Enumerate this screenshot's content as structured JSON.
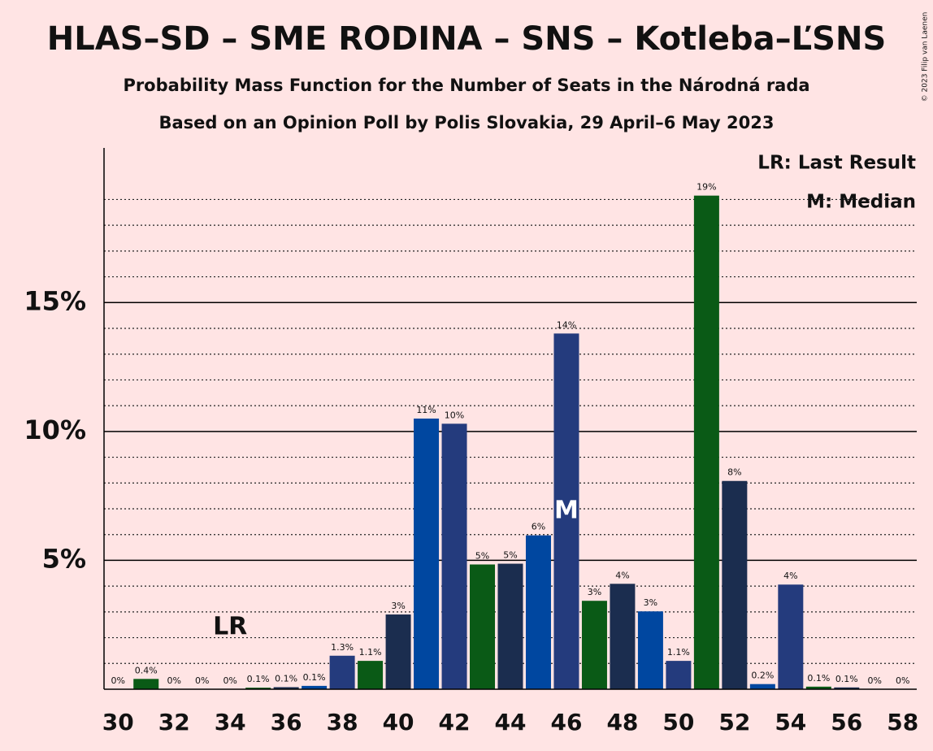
{
  "chart_data": {
    "type": "bar",
    "title": "HLAS–SD – SME RODINA – SNS – Kotleba–ĽSNS",
    "subtitle": "Probability Mass Function for the Number of Seats in the Národná rada",
    "subtitle2": "Based on an Opinion Poll by Polis Slovakia, 29 April–6 May 2023",
    "copyright": "© 2023 Filip van Laenen",
    "x": [
      30,
      31,
      32,
      33,
      34,
      35,
      36,
      37,
      38,
      39,
      40,
      41,
      42,
      43,
      44,
      45,
      46,
      47,
      48,
      49,
      50,
      51,
      52,
      53,
      54,
      55,
      56,
      57,
      58
    ],
    "values": [
      0,
      0.4,
      0,
      0,
      0,
      0.06,
      0.08,
      0.13,
      1.3,
      1.1,
      2.9,
      10.5,
      10.3,
      4.84,
      4.87,
      5.97,
      13.8,
      3.43,
      4.09,
      3.02,
      1.1,
      19.15,
      8.08,
      0.2,
      4.06,
      0.1,
      0.07,
      0,
      0
    ],
    "value_labels": [
      "0%",
      "0.4%",
      "0%",
      "0%",
      "0%",
      "0.1%",
      "0.1%",
      "0.1%",
      "1.3%",
      "1.1%",
      "3%",
      "11%",
      "10%",
      "5%",
      "5%",
      "6%",
      "14%",
      "3%",
      "4%",
      "3%",
      "1.1%",
      "19%",
      "8%",
      "0.2%",
      "4%",
      "0.1%",
      "0.1%",
      "0%",
      "0%"
    ],
    "colors": [
      "#243b7d",
      "#0a5a16",
      "#1b2d4f",
      "#0047a0",
      "#243b7d",
      "#0a5a16",
      "#1b2d4f",
      "#0047a0",
      "#243b7d",
      "#0a5a16",
      "#1b2d4f",
      "#0047a0",
      "#243b7d",
      "#0a5a16",
      "#1b2d4f",
      "#0047a0",
      "#243b7d",
      "#0a5a16",
      "#1b2d4f",
      "#0047a0",
      "#243b7d",
      "#0a5a16",
      "#1b2d4f",
      "#0047a0",
      "#243b7d",
      "#0a5a16",
      "#1b2d4f",
      "#0047a0",
      "#243b7d"
    ],
    "xlim": [
      29.5,
      58.5
    ],
    "xticks": [
      30,
      32,
      34,
      36,
      38,
      40,
      42,
      44,
      46,
      48,
      50,
      52,
      54,
      56,
      58
    ],
    "ylim": [
      0,
      21
    ],
    "yticks": [
      {
        "value": 5,
        "label": "5%"
      },
      {
        "value": 10,
        "label": "10%"
      },
      {
        "value": 15,
        "label": "15%"
      }
    ],
    "minor_yticks": [
      1,
      2,
      3,
      4,
      6,
      7,
      8,
      9,
      11,
      12,
      13,
      14,
      16,
      17,
      18,
      19
    ],
    "grid": true,
    "last_result": {
      "x": 34,
      "label": "LR"
    },
    "median": {
      "x": 46,
      "label": "M"
    },
    "legend": [
      "LR: Last Result",
      "M: Median"
    ]
  }
}
